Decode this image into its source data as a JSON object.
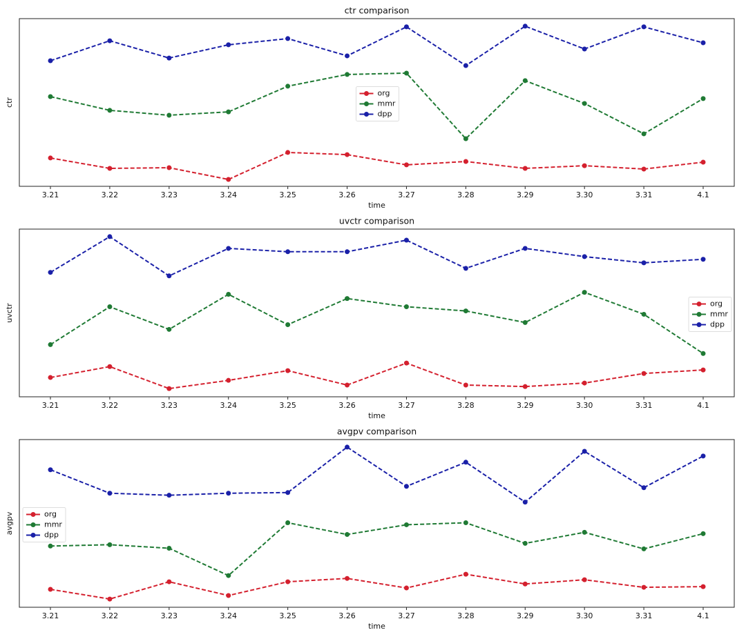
{
  "chart_data": [
    {
      "type": "line",
      "title": "ctr comparison",
      "xlabel": "time",
      "ylabel": "ctr",
      "categories": [
        "3.21",
        "3.22",
        "3.23",
        "3.24",
        "3.25",
        "3.26",
        "3.27",
        "3.28",
        "3.29",
        "3.30",
        "3.31",
        "4.1"
      ],
      "ylim": [
        0,
        100
      ],
      "grid": false,
      "legend": "center",
      "series": [
        {
          "name": "org",
          "color": "#d4202e",
          "values": [
            16.9,
            10.7,
            11.1,
            4.1,
            20.2,
            18.9,
            12.8,
            14.8,
            10.7,
            12.3,
            10.3,
            14.4
          ]
        },
        {
          "name": "mmr",
          "color": "#1f7a34",
          "values": [
            53.5,
            45.3,
            42.4,
            44.4,
            59.7,
            66.7,
            67.5,
            28.4,
            63.0,
            49.4,
            31.3,
            52.3
          ]
        },
        {
          "name": "dpp",
          "color": "#1a20a8",
          "values": [
            74.9,
            86.8,
            76.5,
            84.4,
            88.1,
            77.8,
            95.1,
            72.0,
            95.5,
            81.9,
            95.1,
            85.6
          ]
        }
      ]
    },
    {
      "type": "line",
      "title": "uvctr comparison",
      "xlabel": "time",
      "ylabel": "uvctr",
      "categories": [
        "3.21",
        "3.22",
        "3.23",
        "3.24",
        "3.25",
        "3.26",
        "3.27",
        "3.28",
        "3.29",
        "3.30",
        "3.31",
        "4.1"
      ],
      "ylim": [
        0,
        100
      ],
      "grid": false,
      "legend": "center right",
      "series": [
        {
          "name": "org",
          "color": "#d4202e",
          "values": [
            11.5,
            18.0,
            4.9,
            9.8,
            15.6,
            7.0,
            20.1,
            7.0,
            6.1,
            8.2,
            13.9,
            16.0
          ]
        },
        {
          "name": "mmr",
          "color": "#1f7a34",
          "values": [
            31.1,
            53.7,
            40.2,
            61.1,
            43.0,
            58.6,
            53.7,
            51.2,
            44.3,
            62.3,
            49.2,
            25.8
          ]
        },
        {
          "name": "dpp",
          "color": "#1a20a8",
          "values": [
            74.2,
            95.5,
            72.1,
            88.5,
            86.5,
            86.5,
            93.4,
            76.6,
            88.5,
            83.6,
            79.9,
            82.0
          ]
        }
      ]
    },
    {
      "type": "line",
      "title": "avgpv comparison",
      "xlabel": "time",
      "ylabel": "avgpv",
      "categories": [
        "3.21",
        "3.22",
        "3.23",
        "3.24",
        "3.25",
        "3.26",
        "3.27",
        "3.28",
        "3.29",
        "3.30",
        "3.31",
        "4.1"
      ],
      "ylim": [
        0,
        100
      ],
      "grid": false,
      "legend": "center left",
      "series": [
        {
          "name": "org",
          "color": "#d4202e",
          "values": [
            10.7,
            4.9,
            15.2,
            7.0,
            15.2,
            17.2,
            11.5,
            19.7,
            13.9,
            16.4,
            11.9,
            12.3
          ]
        },
        {
          "name": "mmr",
          "color": "#1f7a34",
          "values": [
            36.5,
            37.3,
            35.2,
            18.9,
            50.4,
            43.4,
            49.2,
            50.4,
            38.1,
            44.7,
            34.8,
            43.9
          ]
        },
        {
          "name": "dpp",
          "color": "#1a20a8",
          "values": [
            82.0,
            68.0,
            66.8,
            68.0,
            68.4,
            95.5,
            72.1,
            86.5,
            62.7,
            93.0,
            71.3,
            90.2
          ]
        }
      ]
    }
  ]
}
